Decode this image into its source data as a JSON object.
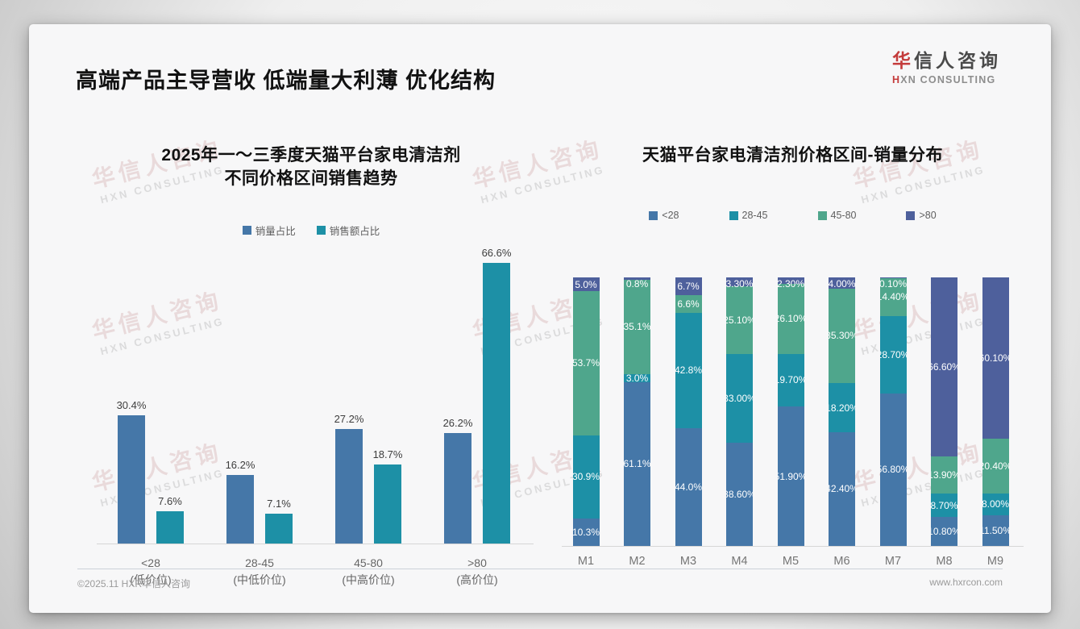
{
  "header": {
    "title": "高端产品主导营收 低端量大利薄 优化结构",
    "logo": {
      "cn_accent": "华",
      "cn_rest": "信人咨询",
      "en_accent": "H",
      "en_rest": "XN CONSULTING",
      "accent_color": "#C43B3B"
    }
  },
  "watermark": {
    "cn": "华信人咨询",
    "en": "HXN CONSULTING"
  },
  "footer": {
    "copyright": "©2025.11 HXR华信人咨询",
    "website": "www.hxrcon.com"
  },
  "chart_data": [
    {
      "type": "bar",
      "stacked": false,
      "title_lines": [
        "2025年一～三季度天猫平台家电清洁剂",
        "不同价格区间销售趋势"
      ],
      "categories": [
        "<28",
        "28-45",
        "45-80",
        ">80"
      ],
      "category_sublabels": [
        "(低价位)",
        "(中低价位)",
        "(中高价位)",
        "(高价位)"
      ],
      "series": [
        {
          "name": "销量占比",
          "color": "#4577A8",
          "values": [
            30.4,
            16.2,
            27.2,
            26.2
          ],
          "labels": [
            "30.4%",
            "16.2%",
            "27.2%",
            "26.2%"
          ]
        },
        {
          "name": "销售额占比",
          "color": "#1D90A6",
          "values": [
            7.6,
            7.1,
            18.7,
            66.6
          ],
          "labels": [
            "7.6%",
            "7.1%",
            "18.7%",
            "66.6%"
          ]
        }
      ],
      "ylim": [
        0,
        70
      ],
      "grid": false,
      "axis_visible": false,
      "legend_position": "top",
      "xlabel": "",
      "ylabel": ""
    },
    {
      "type": "bar",
      "stacked": true,
      "title": "天猫平台家电清洁剂价格区间-销量分布",
      "categories": [
        "M1",
        "M2",
        "M3",
        "M4",
        "M5",
        "M6",
        "M7",
        "M8",
        "M9"
      ],
      "series": [
        {
          "name": "<28",
          "color": "#4577A8",
          "values": [
            10.3,
            61.1,
            44.0,
            38.6,
            51.9,
            42.4,
            56.8,
            10.8,
            11.5
          ],
          "labels": [
            "10.3%",
            "61.1%",
            "44.0%",
            "38.60%",
            "51.90%",
            "42.40%",
            "56.80%",
            "10.80%",
            "11.50%"
          ]
        },
        {
          "name": "28-45",
          "color": "#1D90A6",
          "values": [
            30.9,
            3.0,
            42.8,
            33.0,
            19.7,
            18.2,
            28.7,
            8.7,
            8.0
          ],
          "labels": [
            "30.9%",
            "3.0%",
            "42.8%",
            "33.00%",
            "19.70%",
            "18.20%",
            "28.70%",
            "8.70%",
            "8.00%"
          ]
        },
        {
          "name": "45-80",
          "color": "#4FA68C",
          "values": [
            53.7,
            35.1,
            6.6,
            25.1,
            26.1,
            35.3,
            14.4,
            13.9,
            20.4
          ],
          "labels": [
            "53.7%",
            "35.1%",
            "6.6%",
            "25.10%",
            "26.10%",
            "35.30%",
            "14.40%",
            "13.90%",
            "20.40%"
          ]
        },
        {
          "name": ">80",
          "color": "#4E609C",
          "values": [
            5.0,
            0.8,
            6.7,
            3.3,
            2.3,
            4.0,
            0.1,
            66.6,
            60.1
          ],
          "labels": [
            "5.0%",
            "0.8%",
            "6.7%",
            "3.30%",
            "2.30%",
            "4.00%",
            "0.10%",
            "66.60%",
            "60.10%"
          ]
        }
      ],
      "ylim": [
        0,
        100
      ],
      "grid": false,
      "axis_visible": false,
      "legend_position": "top",
      "xlabel": "",
      "ylabel": ""
    }
  ]
}
